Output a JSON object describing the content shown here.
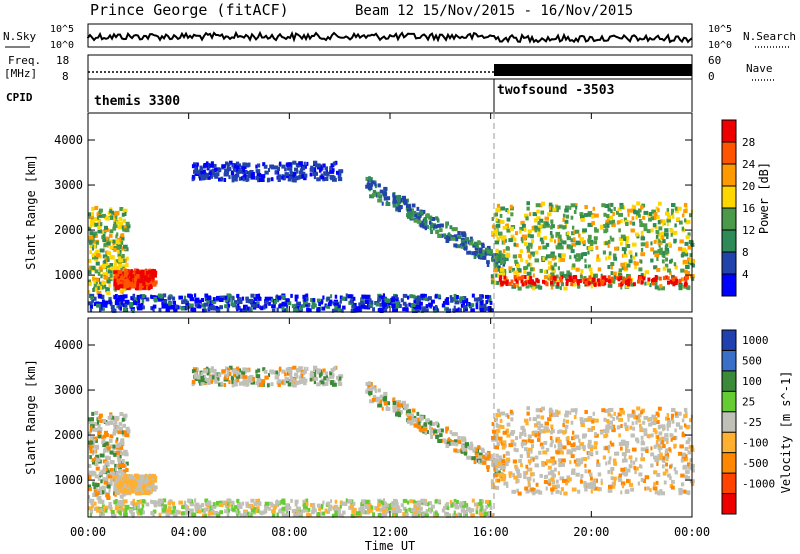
{
  "chart_data": {
    "type": "heatmap",
    "title": "Prince George (fitACF)",
    "subtitle": "Beam 12  15/Nov/2015 - 16/Nov/2015",
    "xlabel": "Time UT",
    "x_ticks": [
      "00:00",
      "04:00",
      "08:00",
      "12:00",
      "16:00",
      "20:00",
      "00:00"
    ],
    "x_range_hours": [
      0,
      24
    ],
    "mode_switch_hour": 16,
    "header": {
      "nsky_label": "N.Sky",
      "nsky_ticks": [
        "10^5",
        "10^0"
      ],
      "nsearch_label": "N.Search",
      "nsearch_ticks": [
        "10^5",
        "10^0"
      ],
      "freq_label_1": "Freq.",
      "freq_label_2": "[MHz]",
      "freq_ticks": [
        "18",
        "8"
      ],
      "nave_label": "Nave",
      "nave_ticks": [
        "60",
        "0"
      ],
      "cpid_label": "CPID",
      "cpid_segments": [
        {
          "label": "themis 3300",
          "start_hour": 0,
          "end_hour": 16
        },
        {
          "label": "twofsound -3503",
          "start_hour": 16,
          "end_hour": 24
        }
      ]
    },
    "panels": [
      {
        "name": "power",
        "ylabel": "Slant Range [km]",
        "y_ticks": [
          "1000",
          "2000",
          "3000",
          "4000"
        ],
        "ylim_km": [
          180,
          4600
        ],
        "colorbar_label": "Power [dB]",
        "colorbar_ticks": [
          "4",
          "8",
          "12",
          "16",
          "20",
          "24",
          "28"
        ],
        "colorbar_colors": [
          "#0000ff",
          "#2244aa",
          "#2e8b57",
          "#4a9a4a",
          "#ffd700",
          "#ff9900",
          "#ff5500",
          "#ee0000"
        ]
      },
      {
        "name": "velocity",
        "ylabel": "Slant Range [km]",
        "y_ticks": [
          "1000",
          "2000",
          "3000",
          "4000"
        ],
        "ylim_km": [
          180,
          4600
        ],
        "colorbar_label": "Velocity [m s^-1]",
        "colorbar_ticks": [
          "1000",
          "500",
          "100",
          "25",
          "-25",
          "-100",
          "-500",
          "-1000"
        ],
        "colorbar_colors": [
          "#2040b0",
          "#3a70c8",
          "#3a8a3a",
          "#66cc33",
          "#c0c0b8",
          "#ffb030",
          "#ff8800",
          "#ff4400",
          "#ee0000"
        ]
      }
    ],
    "echo_regions": [
      {
        "from_h": 0.0,
        "to_h": 1.5,
        "r_lo": 600,
        "r_hi": 2500,
        "level": "mixed"
      },
      {
        "from_h": 1.0,
        "to_h": 2.6,
        "r_lo": 700,
        "r_hi": 1100,
        "level": "strong"
      },
      {
        "from_h": 0.0,
        "to_h": 16.0,
        "r_lo": 200,
        "r_hi": 550,
        "level": "ground"
      },
      {
        "from_h": 4.0,
        "to_h": 10.0,
        "r_lo": 3100,
        "r_hi": 3500,
        "level": "weak"
      },
      {
        "from_h": 11.0,
        "to_h": 16.5,
        "r_lo": 1200,
        "r_hi": 3000,
        "level": "arc"
      },
      {
        "from_h": 16.0,
        "to_h": 24.0,
        "r_lo": 700,
        "r_hi": 2600,
        "level": "band"
      }
    ]
  }
}
